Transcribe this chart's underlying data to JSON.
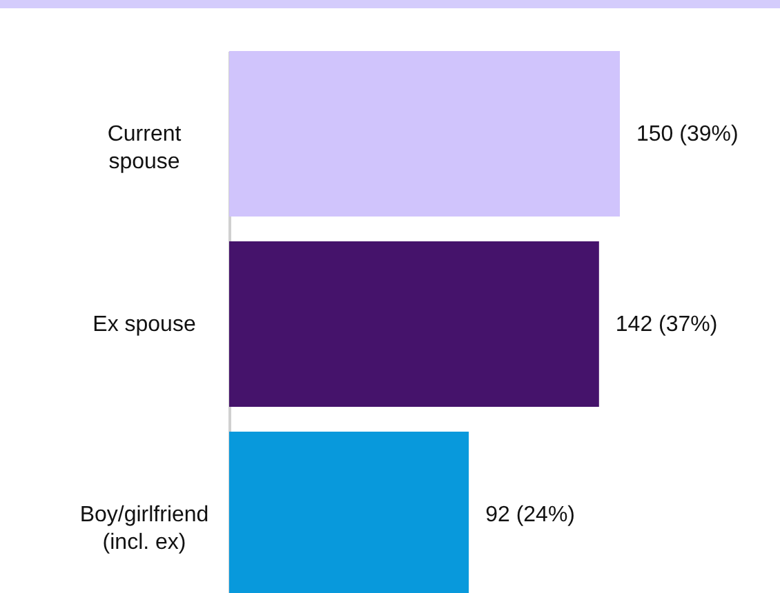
{
  "chart_data": {
    "type": "bar",
    "orientation": "horizontal",
    "categories": [
      "Current spouse",
      "Ex spouse",
      "Boy/girlfriend (incl. ex)"
    ],
    "values": [
      150,
      142,
      92
    ],
    "colors": [
      "#d0c4fc",
      "#45136b",
      "#0899dc"
    ],
    "value_labels": [
      "150 (39%)",
      "142 (37%)",
      "92 (24%)"
    ]
  }
}
